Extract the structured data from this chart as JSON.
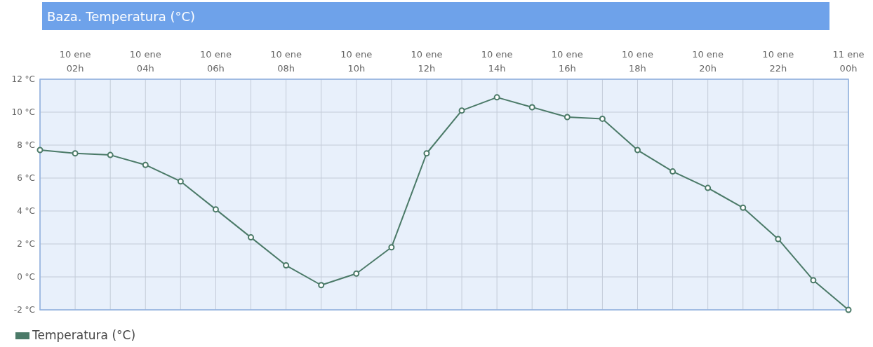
{
  "chart_data": {
    "type": "line",
    "title": "Baza. Temperatura (°C)",
    "categories": [
      null,
      "10 ene\n02h",
      null,
      "10 ene\n04h",
      null,
      "10 ene\n06h",
      null,
      "10 ene\n08h",
      null,
      "10 ene\n10h",
      null,
      "10 ene\n12h",
      null,
      "10 ene\n14h",
      null,
      "10 ene\n16h",
      null,
      "10 ene\n18h",
      null,
      "10 ene\n20h",
      null,
      "10 ene\n22h",
      null,
      "11 ene\n00h"
    ],
    "series": [
      {
        "name": "Temperatura (°C)",
        "color": "#4b7a68",
        "values": [
          7.7,
          7.5,
          7.4,
          6.8,
          5.8,
          4.1,
          2.4,
          0.7,
          -0.5,
          0.2,
          1.8,
          7.5,
          10.1,
          10.9,
          10.3,
          9.7,
          9.6,
          7.7,
          6.4,
          5.4,
          4.2,
          2.3,
          -0.2,
          -2.0
        ]
      }
    ],
    "ylim": [
      -2,
      12
    ],
    "yticks": [
      {
        "value": -2,
        "label": "-2 °C"
      },
      {
        "value": 0,
        "label": "0 °C"
      },
      {
        "value": 2,
        "label": "2 °C"
      },
      {
        "value": 4,
        "label": "4 °C"
      },
      {
        "value": 6,
        "label": "6 °C"
      },
      {
        "value": 8,
        "label": "8 °C"
      },
      {
        "value": 10,
        "label": "10 °C"
      },
      {
        "value": 12,
        "label": "12 °C"
      }
    ],
    "grid": true,
    "legend": "bottom left",
    "marker": "circle",
    "line_style": "solid"
  }
}
